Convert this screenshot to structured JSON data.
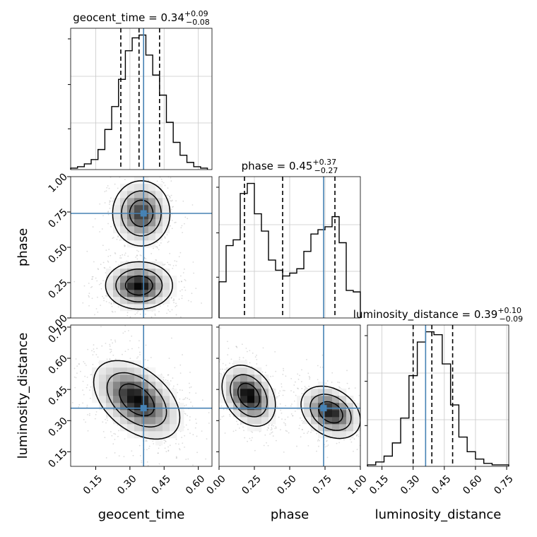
{
  "chart_data": {
    "type": "corner",
    "parameters": [
      {
        "name": "geocent_time",
        "range": [
          0.04,
          0.66
        ],
        "truth": 0.36,
        "ticks": [
          0.15,
          0.3,
          0.45,
          0.6
        ],
        "tick_labels": [
          "0.15",
          "0.30",
          "0.45",
          "0.60"
        ],
        "quantiles": [
          0.26,
          0.34,
          0.43
        ],
        "title": {
          "main": "geocent_time = 0.34",
          "sup": "+0.09",
          "sub": "−0.08"
        }
      },
      {
        "name": "phase",
        "range": [
          0.0,
          1.0
        ],
        "truth": 0.74,
        "ticks": [
          0.0,
          0.25,
          0.5,
          0.75,
          1.0
        ],
        "tick_labels": [
          "0.00",
          "0.25",
          "0.50",
          "0.75",
          "1.00"
        ],
        "quantiles": [
          0.18,
          0.45,
          0.82
        ],
        "title": {
          "main": "phase = 0.45",
          "sup": "+0.37",
          "sub": "−0.27"
        }
      },
      {
        "name": "luminosity_distance",
        "range": [
          0.08,
          0.76
        ],
        "truth": 0.36,
        "ticks": [
          0.15,
          0.3,
          0.45,
          0.6,
          0.75
        ],
        "tick_labels": [
          "0.15",
          "0.30",
          "0.45",
          "0.60",
          "0.75"
        ],
        "quantiles": [
          0.3,
          0.39,
          0.49
        ],
        "title": {
          "main": "luminosity_distance = 0.39",
          "sup": "+0.10",
          "sub": "−0.09"
        }
      }
    ],
    "histograms": [
      {
        "parameter": "geocent_time",
        "edges": [
          0.04,
          0.07,
          0.1,
          0.13,
          0.16,
          0.19,
          0.22,
          0.25,
          0.28,
          0.31,
          0.34,
          0.37,
          0.4,
          0.43,
          0.46,
          0.49,
          0.52,
          0.55,
          0.58,
          0.61,
          0.64
        ],
        "counts": [
          1,
          2,
          4,
          7,
          14,
          28,
          44,
          63,
          83,
          92,
          94,
          80,
          66,
          52,
          33,
          19,
          10,
          5,
          2,
          1
        ]
      },
      {
        "parameter": "phase",
        "edges": [
          0.0,
          0.05,
          0.1,
          0.15,
          0.2,
          0.25,
          0.3,
          0.35,
          0.4,
          0.45,
          0.5,
          0.55,
          0.6,
          0.65,
          0.7,
          0.75,
          0.8,
          0.85,
          0.9,
          0.95,
          1.0
        ],
        "counts": [
          25,
          50,
          54,
          86,
          93,
          72,
          60,
          40,
          33,
          29,
          31,
          34,
          46,
          58,
          61,
          63,
          70,
          52,
          19,
          18
        ]
      },
      {
        "parameter": "luminosity_distance",
        "edges": [
          0.08,
          0.12,
          0.16,
          0.2,
          0.24,
          0.28,
          0.32,
          0.36,
          0.4,
          0.44,
          0.48,
          0.52,
          0.56,
          0.6,
          0.64,
          0.68,
          0.72,
          0.76
        ],
        "counts": [
          1,
          3,
          7,
          16,
          33,
          62,
          85,
          92,
          90,
          70,
          42,
          20,
          10,
          5,
          2,
          1,
          1
        ]
      }
    ],
    "hist2d": [
      {
        "x": "geocent_time",
        "y": "phase",
        "blobs": [
          {
            "x": 0.35,
            "y": 0.74,
            "sx": 0.06,
            "sy": 0.11,
            "w": 1.0
          },
          {
            "x": 0.34,
            "y": 0.23,
            "sx": 0.07,
            "sy": 0.08,
            "w": 1.2
          }
        ]
      },
      {
        "x": "geocent_time",
        "y": "luminosity_distance",
        "blobs": [
          {
            "x": 0.33,
            "y": 0.4,
            "sx": 0.09,
            "sy": 0.09,
            "w": 1.0,
            "rho": -0.45
          }
        ]
      },
      {
        "x": "phase",
        "y": "luminosity_distance",
        "blobs": [
          {
            "x": 0.21,
            "y": 0.42,
            "sx": 0.09,
            "sy": 0.07,
            "w": 1.1,
            "rho": -0.3
          },
          {
            "x": 0.79,
            "y": 0.34,
            "sx": 0.1,
            "sy": 0.06,
            "w": 1.0,
            "rho": -0.3
          }
        ]
      }
    ],
    "truth_color": "#4682b4",
    "hist_color": "#000000",
    "grid": true
  }
}
